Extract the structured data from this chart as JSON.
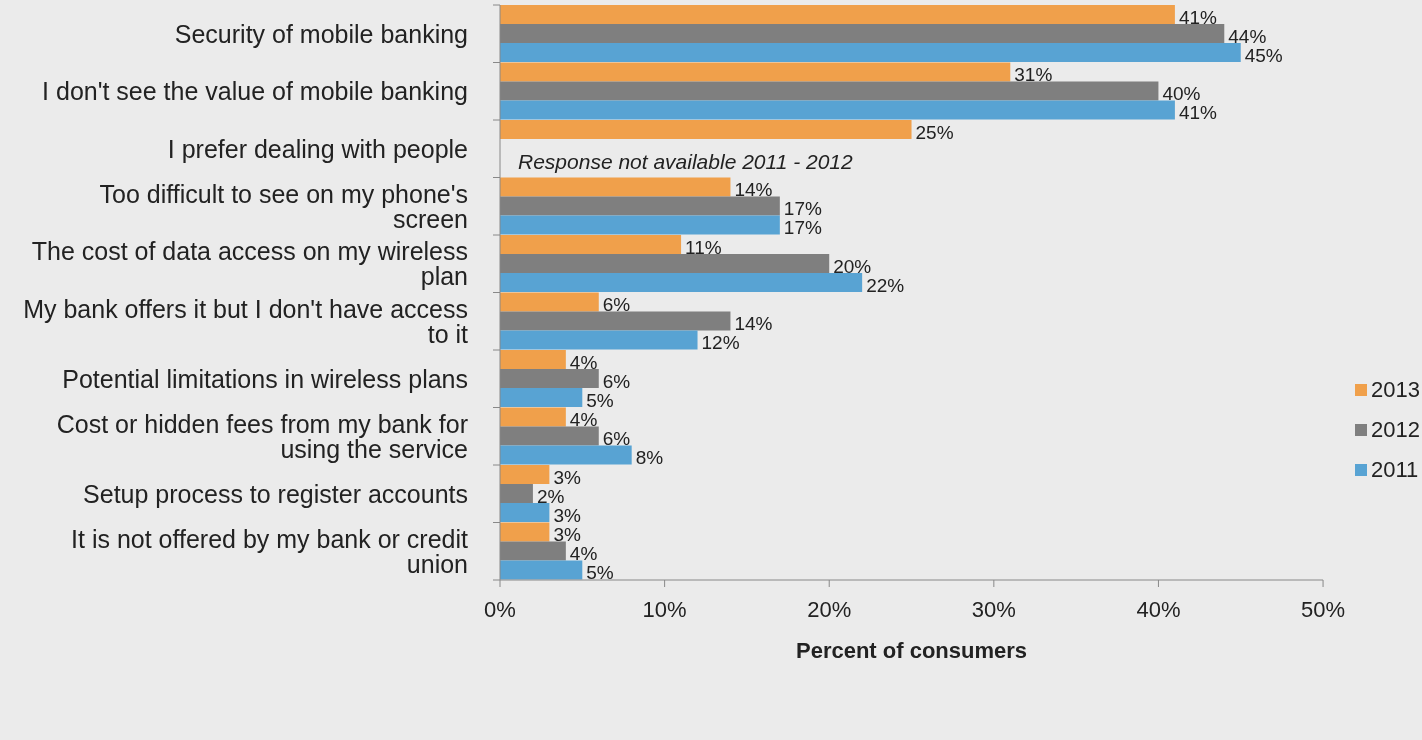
{
  "chart_data": {
    "type": "bar",
    "orientation": "horizontal",
    "xlabel": "Percent of consumers",
    "categories": [
      "Security of mobile banking",
      "I don't see the value of mobile banking",
      "I prefer dealing with people",
      "Too difficult to see on my phone's screen",
      "The cost of data access on my wireless plan",
      "My bank offers it but I don't have access to it",
      "Potential limitations in wireless plans",
      "Cost or hidden fees from my bank for using the service",
      "Setup process to register accounts",
      "It is not offered by my bank or credit union"
    ],
    "series": [
      {
        "name": "2013",
        "color": "#f0a04b",
        "values": [
          41,
          31,
          25,
          14,
          11,
          6,
          4,
          4,
          3,
          3
        ],
        "value_labels": [
          "41%",
          "31%",
          "25%",
          "14%",
          "11%",
          "6%",
          "4%",
          "4%",
          "3%",
          "3%"
        ]
      },
      {
        "name": "2012",
        "color": "#7f7f7f",
        "values": [
          44,
          40,
          null,
          17,
          20,
          14,
          6,
          6,
          2,
          4
        ],
        "value_labels": [
          "44%",
          "40%",
          null,
          "17%",
          "20%",
          "14%",
          "6%",
          "6%",
          "2%",
          "4%"
        ]
      },
      {
        "name": "2011",
        "color": "#58a3d3",
        "values": [
          45,
          41,
          null,
          17,
          22,
          12,
          5,
          8,
          3,
          5
        ],
        "value_labels": [
          "45%",
          "41%",
          null,
          "17%",
          "22%",
          "12%",
          "5%",
          "8%",
          "3%",
          "5%"
        ]
      }
    ],
    "xlim": [
      0,
      50
    ],
    "xticks": [
      {
        "value": 0,
        "label": "0%"
      },
      {
        "value": 10,
        "label": "10%"
      },
      {
        "value": 20,
        "label": "20%"
      },
      {
        "value": 30,
        "label": "30%"
      },
      {
        "value": 40,
        "label": "40%"
      },
      {
        "value": 50,
        "label": "50%"
      }
    ],
    "annotations": [
      "Response not available 2011 - 2012"
    ],
    "legend": "right"
  }
}
